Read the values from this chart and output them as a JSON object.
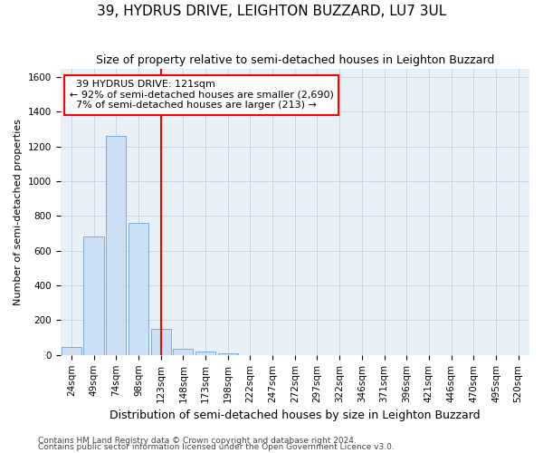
{
  "title": "39, HYDRUS DRIVE, LEIGHTON BUZZARD, LU7 3UL",
  "subtitle": "Size of property relative to semi-detached houses in Leighton Buzzard",
  "xlabel": "Distribution of semi-detached houses by size in Leighton Buzzard",
  "ylabel": "Number of semi-detached properties",
  "footnote1": "Contains HM Land Registry data © Crown copyright and database right 2024.",
  "footnote2": "Contains public sector information licensed under the Open Government Licence v3.0.",
  "property_label": "39 HYDRUS DRIVE: 121sqm",
  "pct_smaller": 92,
  "count_smaller": 2690,
  "pct_larger": 7,
  "count_larger": 213,
  "bar_categories": [
    "24sqm",
    "49sqm",
    "74sqm",
    "98sqm",
    "123sqm",
    "148sqm",
    "173sqm",
    "198sqm",
    "222sqm",
    "247sqm",
    "272sqm",
    "297sqm",
    "322sqm",
    "346sqm",
    "371sqm",
    "396sqm",
    "421sqm",
    "446sqm",
    "470sqm",
    "495sqm",
    "520sqm"
  ],
  "bar_values": [
    45,
    680,
    1260,
    760,
    150,
    35,
    20,
    8,
    0,
    0,
    0,
    0,
    0,
    0,
    0,
    0,
    0,
    0,
    0,
    0,
    0
  ],
  "bar_color": "#cce0f5",
  "bar_edge_color": "#7badd4",
  "vline_bin_index": 4,
  "vline_color": "red",
  "ylim": [
    0,
    1650
  ],
  "yticks": [
    0,
    200,
    400,
    600,
    800,
    1000,
    1200,
    1400,
    1600
  ],
  "grid_color": "#c8d4e8",
  "bg_color": "#e8f0f8",
  "title_fontsize": 11,
  "subtitle_fontsize": 9,
  "ylabel_fontsize": 8,
  "xlabel_fontsize": 9,
  "tick_fontsize": 7.5,
  "annot_fontsize": 8,
  "footnote_fontsize": 6.5
}
